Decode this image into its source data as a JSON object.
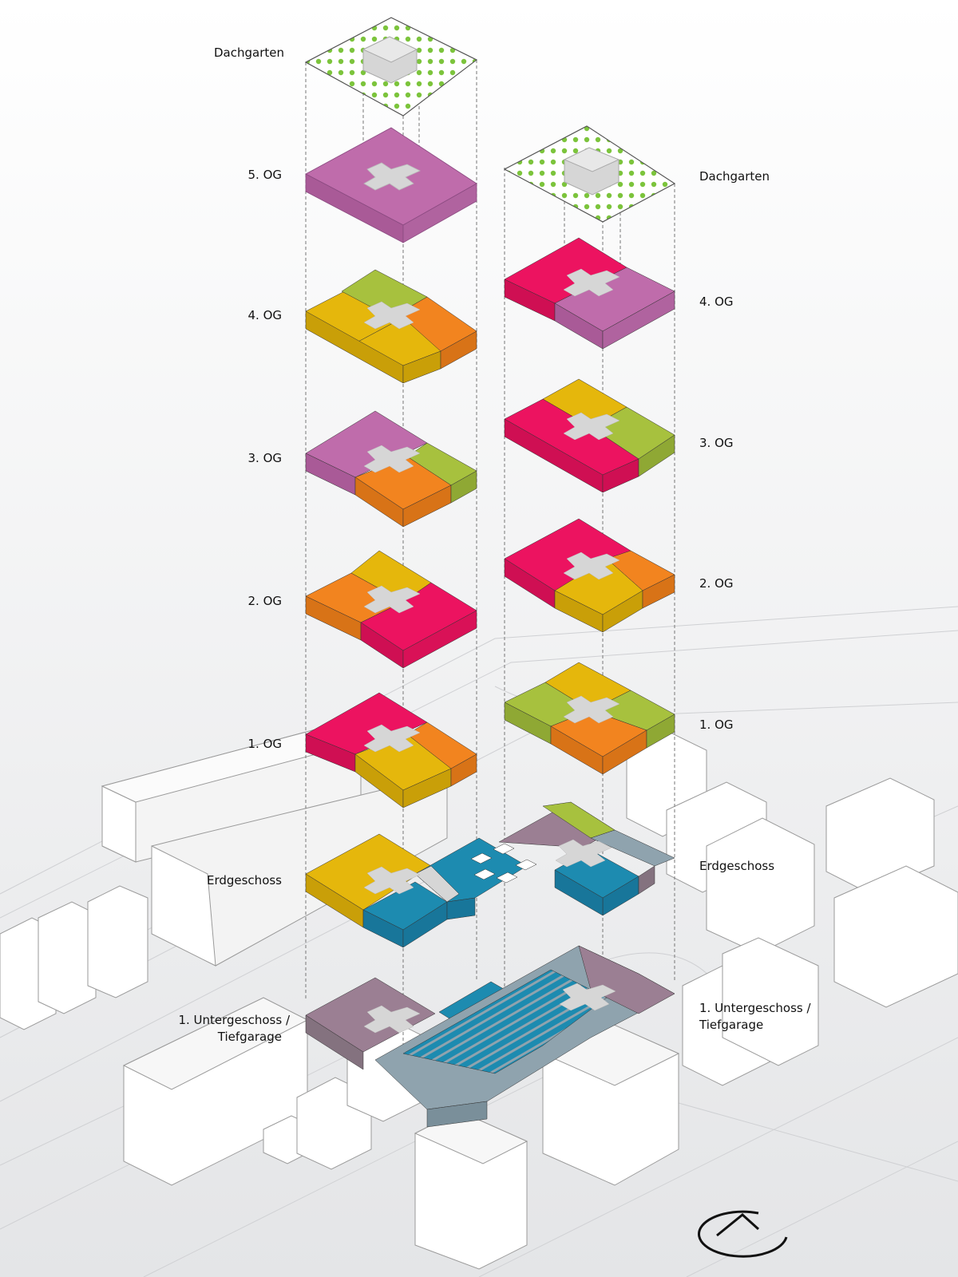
{
  "colors": {
    "magenta": "#ec1360",
    "violet": "#bf6cab",
    "yellow": "#e5b70c",
    "orange": "#f2841f",
    "lime": "#a7c13e",
    "teal": "#1d8bb0",
    "mauve": "#9b7f93",
    "slate": "#8fa3ae",
    "core": "#d6d6d6",
    "roof_dot": "#7cc43c"
  },
  "north_icon": "north-arrow-icon",
  "left_tower": {
    "labels": {
      "dachgarten": "Dachgarten",
      "og5": "5. OG",
      "og4": "4. OG",
      "og3": "3. OG",
      "og2": "2. OG",
      "og1": "1. OG",
      "eg": "Erdgeschoss",
      "ug_line1": "1. Untergeschoss /",
      "ug_line2": "Tiefgarage"
    }
  },
  "right_tower": {
    "labels": {
      "dachgarten": "Dachgarten",
      "og4": "4. OG",
      "og3": "3. OG",
      "og2": "2. OG",
      "og1": "1. OG",
      "eg": "Erdgeschoss",
      "ug_line1": "1. Untergeschoss /",
      "ug_line2": "Tiefgarage"
    }
  }
}
